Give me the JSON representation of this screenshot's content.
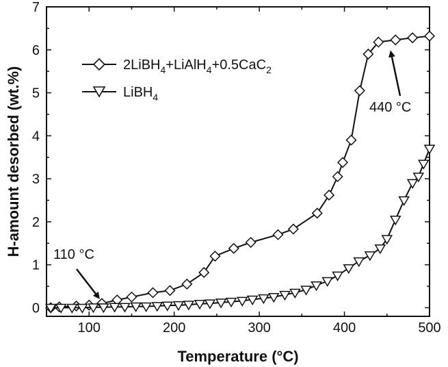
{
  "chart_data": {
    "type": "line",
    "title": "",
    "xlabel": "Temperature (°C)",
    "ylabel": "H-amount desorbed (wt.%)",
    "xlim": [
      50,
      500
    ],
    "ylim": [
      -0.2,
      7
    ],
    "x_ticks": [
      100,
      200,
      300,
      400,
      500
    ],
    "y_ticks": [
      0,
      1,
      2,
      3,
      4,
      5,
      6,
      7
    ],
    "grid": false,
    "legend": {
      "placement": "top-left",
      "entries": [
        {
          "label_main": "2LiBH",
          "sub1": "4",
          "label_mid": "+LiAlH",
          "sub2": "4",
          "label_tail": "+0.5CaC",
          "sub3": "2"
        },
        {
          "label_main": "LiBH",
          "sub1": "4"
        }
      ]
    },
    "series": [
      {
        "marker": "diamond",
        "x": [
          55,
          65,
          85,
          100,
          115,
          133,
          150,
          175,
          195,
          215,
          235,
          248,
          270,
          290,
          322,
          340,
          368,
          382,
          392,
          398,
          408,
          418,
          428,
          440,
          460,
          480,
          500
        ],
        "y": [
          0.0,
          0.02,
          0.04,
          0.06,
          0.1,
          0.18,
          0.25,
          0.35,
          0.4,
          0.55,
          0.82,
          1.2,
          1.38,
          1.52,
          1.7,
          1.83,
          2.2,
          2.62,
          3.05,
          3.38,
          3.9,
          5.05,
          5.9,
          6.18,
          6.23,
          6.28,
          6.32
        ]
      },
      {
        "marker": "triangle-down",
        "x": [
          55,
          67,
          80,
          92,
          105,
          117,
          130,
          142,
          155,
          167,
          180,
          192,
          205,
          217,
          230,
          242,
          255,
          267,
          280,
          292,
          305,
          317,
          330,
          342,
          355,
          367,
          380,
          392,
          405,
          417,
          430,
          442,
          450,
          460,
          470,
          480,
          487,
          493,
          500
        ],
        "y": [
          0.0,
          0.0,
          0.0,
          0.0,
          0.01,
          0.01,
          0.02,
          0.02,
          0.03,
          0.03,
          0.04,
          0.05,
          0.06,
          0.07,
          0.09,
          0.1,
          0.12,
          0.14,
          0.16,
          0.19,
          0.22,
          0.25,
          0.3,
          0.35,
          0.42,
          0.52,
          0.62,
          0.75,
          0.92,
          1.08,
          1.22,
          1.38,
          1.6,
          2.05,
          2.5,
          2.9,
          3.05,
          3.35,
          3.7
        ]
      }
    ],
    "annotations": [
      {
        "text": "110 °C",
        "x": 110,
        "y": 0.1
      },
      {
        "text": "440 °C",
        "x": 440,
        "y": 6.18
      }
    ]
  }
}
